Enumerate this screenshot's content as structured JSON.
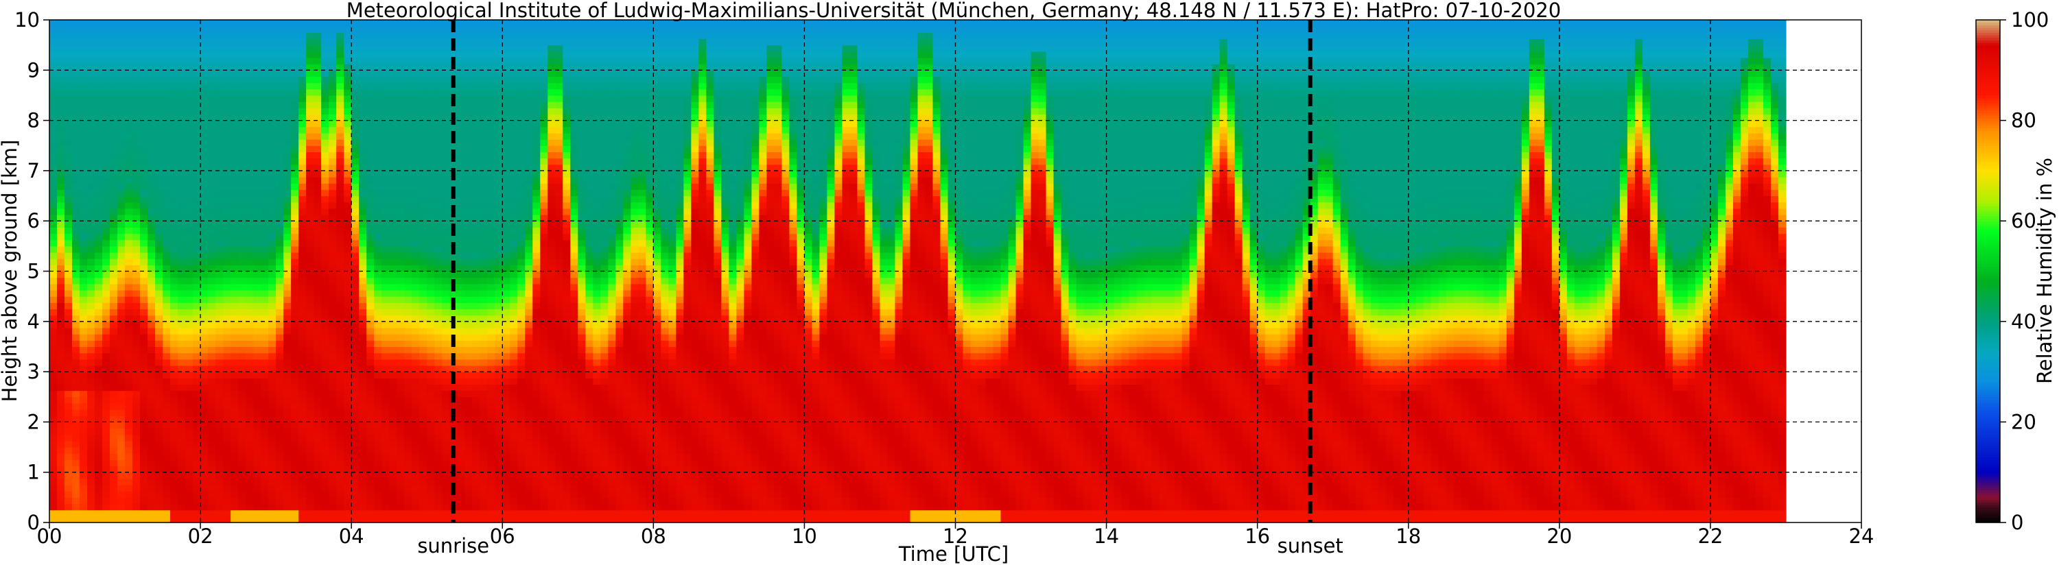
{
  "chart_data": {
    "type": "heatmap",
    "title": "Meteorological Institute of Ludwig-Maximilians-Universität (München, Germany; 48.148 N / 11.573 E):    HatPro: 07-10-2020",
    "xlabel": "Time [UTC]",
    "ylabel": "Height above ground [km]",
    "colorbar_label": "Relative Humidity in %",
    "xlim": [
      0,
      24
    ],
    "ylim": [
      0,
      10
    ],
    "x_ticks": [
      "00",
      "02",
      "04",
      "06",
      "08",
      "10",
      "12",
      "14",
      "16",
      "18",
      "20",
      "22",
      "24"
    ],
    "y_ticks": [
      "0",
      "1",
      "2",
      "3",
      "4",
      "5",
      "6",
      "7",
      "8",
      "9",
      "10"
    ],
    "colorbar_ticks": [
      "0",
      "20",
      "40",
      "60",
      "80",
      "100"
    ],
    "colorbar_range": [
      0,
      100
    ],
    "grid": true,
    "data_end_hour": 23.0,
    "events": [
      {
        "name": "sunrise",
        "hour": 5.35
      },
      {
        "name": "sunset",
        "hour": 16.7
      }
    ],
    "colormap": [
      {
        "v": 0,
        "color": "#000000"
      },
      {
        "v": 3,
        "color": "#3a0a18"
      },
      {
        "v": 5,
        "color": "#8a1030"
      },
      {
        "v": 10,
        "color": "#0000c0"
      },
      {
        "v": 22,
        "color": "#0a50e8"
      },
      {
        "v": 28,
        "color": "#0a90e0"
      },
      {
        "v": 34,
        "color": "#05a8c0"
      },
      {
        "v": 40,
        "color": "#00a080"
      },
      {
        "v": 48,
        "color": "#00b020"
      },
      {
        "v": 58,
        "color": "#00ff20"
      },
      {
        "v": 64,
        "color": "#b0f000"
      },
      {
        "v": 70,
        "color": "#ffe000"
      },
      {
        "v": 78,
        "color": "#ff9000"
      },
      {
        "v": 85,
        "color": "#ff1800"
      },
      {
        "v": 95,
        "color": "#d80000"
      },
      {
        "v": 100,
        "color": "#d8c080"
      }
    ],
    "moist_peaks": [
      {
        "hour": 0.15,
        "height_km": 4.6,
        "width_h": 0.15
      },
      {
        "hour": 1.1,
        "height_km": 4.4,
        "width_h": 0.35
      },
      {
        "hour": 3.5,
        "height_km": 7.5,
        "width_h": 0.3
      },
      {
        "hour": 3.85,
        "height_km": 7.3,
        "width_h": 0.25
      },
      {
        "hour": 6.7,
        "height_km": 7.0,
        "width_h": 0.25
      },
      {
        "hour": 7.8,
        "height_km": 4.8,
        "width_h": 0.3
      },
      {
        "hour": 8.65,
        "height_km": 7.0,
        "width_h": 0.25
      },
      {
        "hour": 9.6,
        "height_km": 7.2,
        "width_h": 0.35
      },
      {
        "hour": 10.6,
        "height_km": 7.0,
        "width_h": 0.3
      },
      {
        "hour": 11.6,
        "height_km": 7.5,
        "width_h": 0.3
      },
      {
        "hour": 13.1,
        "height_km": 7.0,
        "width_h": 0.25
      },
      {
        "hour": 15.55,
        "height_km": 7.2,
        "width_h": 0.3
      },
      {
        "hour": 16.9,
        "height_km": 5.0,
        "width_h": 0.3
      },
      {
        "hour": 19.7,
        "height_km": 7.5,
        "width_h": 0.25
      },
      {
        "hour": 21.05,
        "height_km": 7.0,
        "width_h": 0.25
      },
      {
        "hour": 22.6,
        "height_km": 7.0,
        "width_h": 0.5
      }
    ]
  }
}
